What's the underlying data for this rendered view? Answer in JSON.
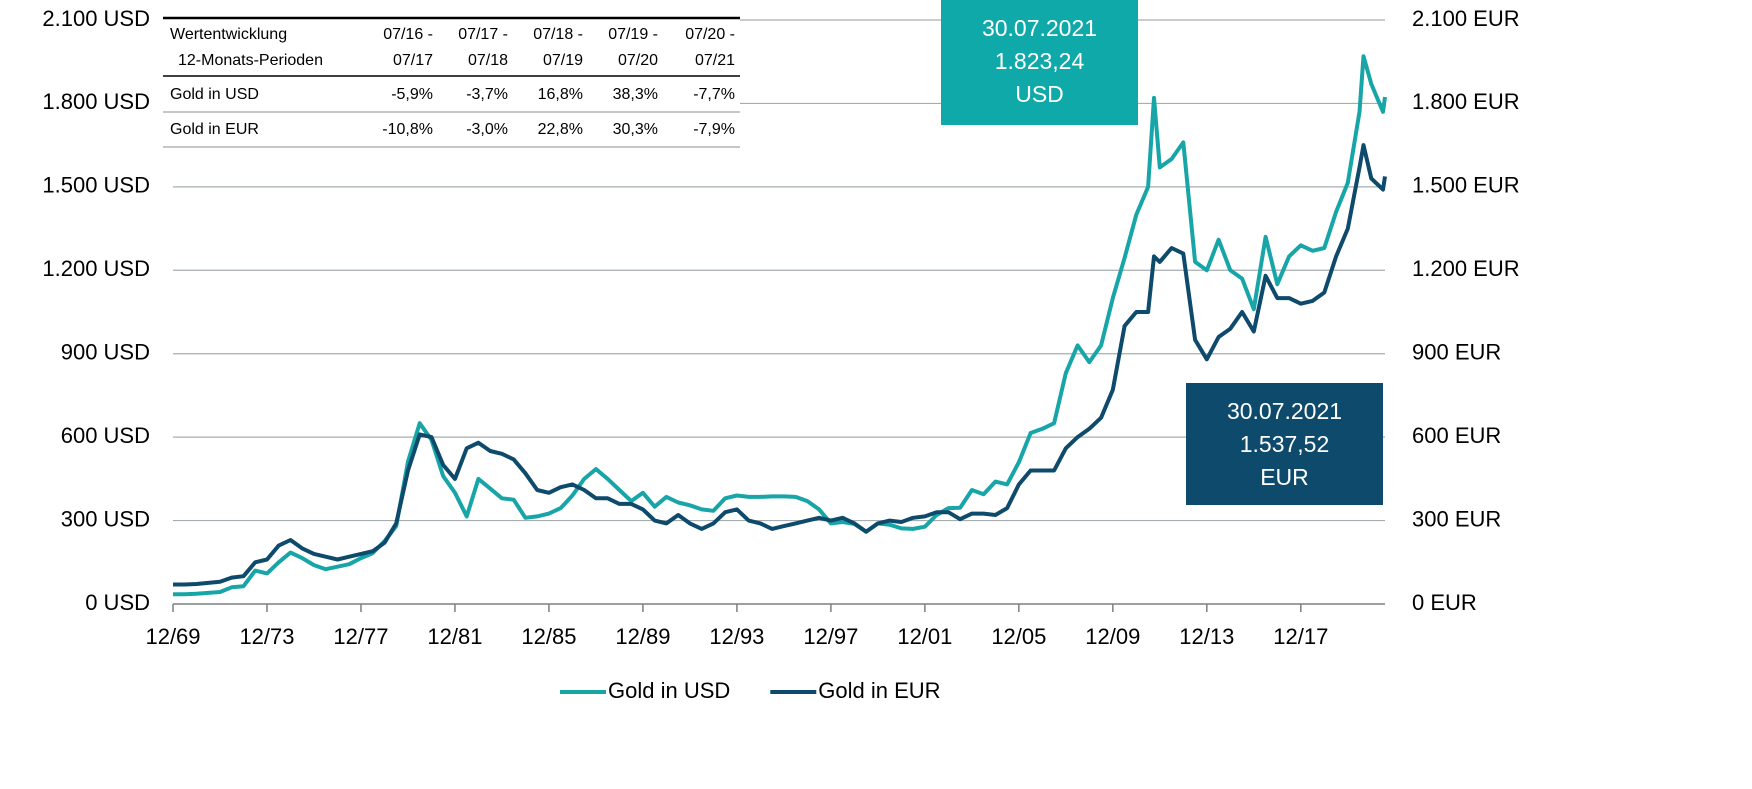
{
  "chart_data": {
    "type": "line",
    "x": [
      "12/69",
      "06/70",
      "12/70",
      "06/71",
      "12/71",
      "06/72",
      "12/72",
      "06/73",
      "12/73",
      "06/74",
      "12/74",
      "06/75",
      "12/75",
      "06/76",
      "12/76",
      "06/77",
      "12/77",
      "06/78",
      "12/78",
      "06/79",
      "12/79",
      "06/80",
      "12/80",
      "06/81",
      "12/81",
      "06/82",
      "12/82",
      "06/83",
      "12/83",
      "06/84",
      "12/84",
      "06/85",
      "12/85",
      "06/86",
      "12/86",
      "06/87",
      "12/87",
      "06/88",
      "12/88",
      "06/89",
      "12/89",
      "06/90",
      "12/90",
      "06/91",
      "12/91",
      "06/92",
      "12/92",
      "06/93",
      "12/93",
      "06/94",
      "12/94",
      "06/95",
      "12/95",
      "06/96",
      "12/96",
      "06/97",
      "12/97",
      "06/98",
      "12/98",
      "06/99",
      "12/99",
      "06/00",
      "12/00",
      "06/01",
      "12/01",
      "06/02",
      "12/02",
      "06/03",
      "12/03",
      "06/04",
      "12/04",
      "06/05",
      "12/05",
      "06/06",
      "12/06",
      "06/07",
      "12/07",
      "06/08",
      "12/08",
      "06/09",
      "12/09",
      "06/10",
      "12/10",
      "06/11",
      "09/11",
      "12/11",
      "06/12",
      "12/12",
      "06/13",
      "12/13",
      "06/14",
      "12/14",
      "06/15",
      "12/15",
      "06/16",
      "12/16",
      "06/17",
      "12/17",
      "06/18",
      "12/18",
      "06/19",
      "12/19",
      "06/20",
      "08/20",
      "12/20",
      "06/21",
      "07/21"
    ],
    "series": [
      {
        "name": "Gold in USD",
        "color": "#17a5a8",
        "values": [
          35,
          35,
          37,
          40,
          43,
          60,
          64,
          120,
          110,
          150,
          185,
          165,
          140,
          125,
          134,
          143,
          165,
          183,
          226,
          280,
          512,
          650,
          590,
          460,
          400,
          315,
          450,
          415,
          380,
          375,
          310,
          315,
          325,
          345,
          390,
          450,
          485,
          450,
          410,
          370,
          400,
          350,
          385,
          365,
          355,
          340,
          335,
          380,
          390,
          385,
          385,
          387,
          387,
          385,
          370,
          340,
          290,
          295,
          288,
          260,
          290,
          285,
          272,
          270,
          278,
          320,
          345,
          346,
          410,
          395,
          440,
          430,
          510,
          615,
          630,
          650,
          830,
          930,
          870,
          930,
          1100,
          1245,
          1400,
          1500,
          1820,
          1570,
          1600,
          1660,
          1230,
          1200,
          1310,
          1200,
          1170,
          1060,
          1320,
          1150,
          1250,
          1290,
          1270,
          1280,
          1410,
          1515,
          1770,
          1970,
          1870,
          1770,
          1823.24
        ]
      },
      {
        "name": "Gold in EUR",
        "color": "#0d4a6b",
        "axis": "y2",
        "values": [
          70,
          70,
          72,
          76,
          80,
          95,
          100,
          150,
          160,
          210,
          230,
          200,
          180,
          170,
          160,
          170,
          180,
          190,
          220,
          290,
          480,
          610,
          600,
          500,
          450,
          560,
          580,
          550,
          540,
          520,
          470,
          410,
          400,
          420,
          430,
          410,
          380,
          380,
          360,
          360,
          340,
          300,
          290,
          320,
          290,
          270,
          290,
          330,
          340,
          300,
          290,
          270,
          280,
          290,
          300,
          310,
          300,
          310,
          290,
          260,
          290,
          300,
          295,
          310,
          315,
          330,
          330,
          305,
          325,
          325,
          320,
          345,
          430,
          480,
          480,
          480,
          560,
          600,
          630,
          670,
          770,
          1000,
          1050,
          1050,
          1250,
          1230,
          1280,
          1260,
          950,
          880,
          960,
          990,
          1050,
          980,
          1180,
          1100,
          1100,
          1080,
          1090,
          1120,
          1250,
          1350,
          1570,
          1650,
          1530,
          1490,
          1537.52
        ]
      }
    ],
    "xlim": [
      "12/69",
      "07/21"
    ],
    "xticks": [
      "12/69",
      "12/73",
      "12/77",
      "12/81",
      "12/85",
      "12/89",
      "12/93",
      "12/97",
      "12/01",
      "12/05",
      "12/09",
      "12/13",
      "12/17"
    ],
    "ylim": [
      0,
      2100
    ],
    "yticks": [
      {
        "value": 0,
        "label": "0 USD"
      },
      {
        "value": 300,
        "label": "300 USD"
      },
      {
        "value": 600,
        "label": "600 USD"
      },
      {
        "value": 900,
        "label": "900 USD"
      },
      {
        "value": 1200,
        "label": "1.200 USD"
      },
      {
        "value": 1500,
        "label": "1.500 USD"
      },
      {
        "value": 1800,
        "label": "1.800 USD"
      },
      {
        "value": 2100,
        "label": "2.100 USD"
      }
    ],
    "y2lim": [
      0,
      2100
    ],
    "y2ticks": [
      {
        "value": 0,
        "label": "0 EUR"
      },
      {
        "value": 300,
        "label": "300 EUR"
      },
      {
        "value": 600,
        "label": "600 EUR"
      },
      {
        "value": 900,
        "label": "900 EUR"
      },
      {
        "value": 1200,
        "label": "1.200 EUR"
      },
      {
        "value": 1500,
        "label": "1.500 EUR"
      },
      {
        "value": 1800,
        "label": "1.800 EUR"
      },
      {
        "value": 2100,
        "label": "2.100 EUR"
      }
    ],
    "grid": true,
    "legend": "bottom",
    "annotations": [
      {
        "lines": [
          "30.07.2021",
          "1.823,24",
          "USD"
        ],
        "color": "#0fa9aa"
      },
      {
        "lines": [
          "30.07.2021",
          "1.537,52",
          "EUR"
        ],
        "color": "#0d4a6b"
      }
    ],
    "table": {
      "header": [
        [
          "Wertentwicklung",
          "12-Monats-Perioden"
        ],
        [
          "07/16 -",
          "07/17"
        ],
        [
          "07/17 -",
          "07/18"
        ],
        [
          "07/18 -",
          "07/19"
        ],
        [
          "07/19 -",
          "07/20"
        ],
        [
          "07/20 -",
          "07/21"
        ]
      ],
      "rows": [
        [
          "Gold in USD",
          "-5,9%",
          "-3,7%",
          "16,8%",
          "38,3%",
          "-7,7%"
        ],
        [
          "Gold in EUR",
          "-10,8%",
          "-3,0%",
          "22,8%",
          "30,3%",
          "-7,9%"
        ]
      ]
    }
  }
}
